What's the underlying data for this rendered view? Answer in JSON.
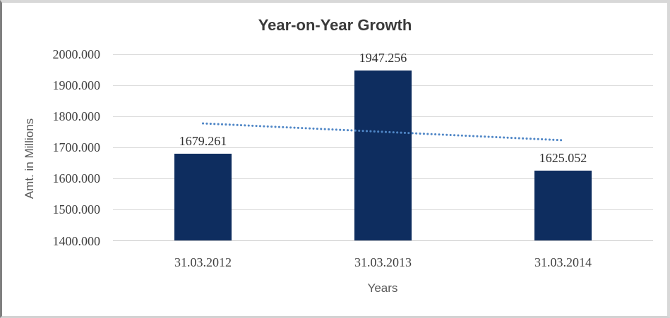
{
  "chart_data": {
    "type": "bar",
    "title": "Year-on-Year Growth",
    "categories": [
      "31.03.2012",
      "31.03.2013",
      "31.03.2014"
    ],
    "values": [
      1679.261,
      1947.256,
      1625.052
    ],
    "data_labels": [
      "1679.261",
      "1947.256",
      "1625.052"
    ],
    "xlabel": "Years",
    "ylabel": "Amt. in Millions",
    "ylim": [
      1400,
      2000
    ],
    "ytick_step": 100,
    "ytick_labels": [
      "2000.000",
      "1900.000",
      "1800.000",
      "1700.000",
      "1600.000",
      "1500.000",
      "1400.000"
    ],
    "grid": true,
    "legend": "none",
    "bar_color": "#0e2d5f",
    "trendline": {
      "type": "linear",
      "style": "dotted",
      "color": "#4f86c6"
    },
    "colors": {
      "gridline": "#d9d9d9",
      "axis_line": "#c9c9c9",
      "tick_text": "#3f3f3f",
      "data_label_text": "#303030",
      "axis_title_text": "#595959",
      "title_text": "#3b3b3b"
    }
  }
}
